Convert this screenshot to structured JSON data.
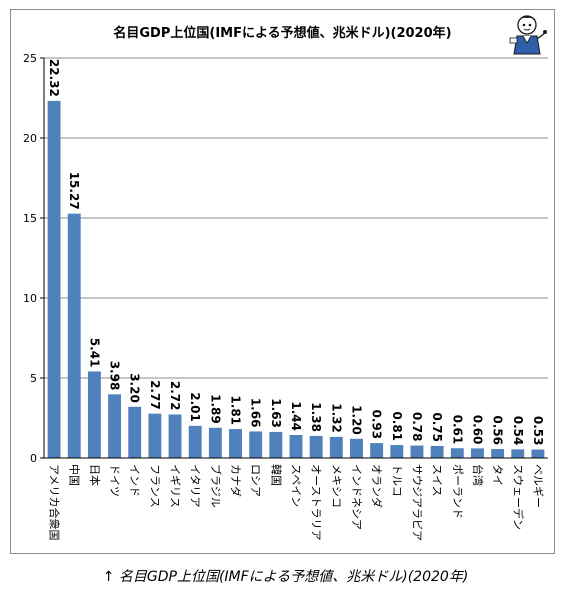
{
  "header": {
    "title": "名目GDP上位国(IMFによる予想値、兆米ドル)(2020年)"
  },
  "footer": {
    "arrow": "↑",
    "caption": "名目GDP上位国(IMFによる予想値、兆米ドル)(2020年)"
  },
  "colors": {
    "bar": "#4f81bd",
    "grid": "#8c8c8c",
    "axis": "#000000"
  },
  "chart_data": {
    "type": "bar",
    "title": "名目GDP上位国(IMFによる予想値、兆米ドル)(2020年)",
    "xlabel": "",
    "ylabel": "",
    "ylim": [
      0,
      25
    ],
    "yticks": [
      0,
      5,
      10,
      15,
      20,
      25
    ],
    "grid": true,
    "legend": "none",
    "categories": [
      "アメリカ合衆国",
      "中国",
      "日本",
      "ドイツ",
      "インド",
      "フランス",
      "イギリス",
      "イタリア",
      "ブラジル",
      "カナダ",
      "ロシア",
      "韓国",
      "スペイン",
      "オーストラリア",
      "メキシコ",
      "インドネシア",
      "オランダ",
      "トルコ",
      "サウジアラビア",
      "スイス",
      "ポーランド",
      "台湾",
      "タイ",
      "スウェーデン",
      "ベルギー"
    ],
    "values": [
      22.32,
      15.27,
      5.41,
      3.98,
      3.2,
      2.77,
      2.72,
      2.01,
      1.89,
      1.81,
      1.66,
      1.63,
      1.44,
      1.38,
      1.32,
      1.2,
      0.93,
      0.81,
      0.78,
      0.75,
      0.61,
      0.6,
      0.56,
      0.54,
      0.53
    ],
    "labels": [
      "22.32",
      "15.27",
      "5.41",
      "3.98",
      "3.20",
      "2.77",
      "2.72",
      "2.01",
      "1.89",
      "1.81",
      "1.66",
      "1.63",
      "1.44",
      "1.38",
      "1.32",
      "1.20",
      "0.93",
      "0.81",
      "0.78",
      "0.75",
      "0.61",
      "0.60",
      "0.56",
      "0.54",
      "0.53"
    ]
  }
}
